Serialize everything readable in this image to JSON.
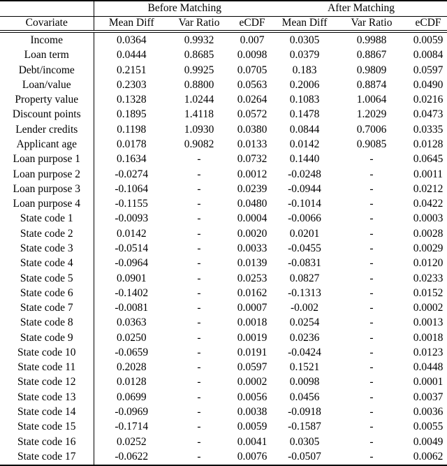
{
  "colors": {
    "text": "#000000",
    "background": "#ffffff",
    "rule": "#000000"
  },
  "table": {
    "group_headers": {
      "corner": "",
      "before": "Before Matching",
      "after": "After Matching"
    },
    "column_headers": [
      "Covariate",
      "Mean Diff",
      "Var Ratio",
      "eCDF",
      "Mean Diff",
      "Var Ratio",
      "eCDF"
    ],
    "rows": [
      {
        "covariate": "Income",
        "values": [
          "0.0364",
          "0.9932",
          "0.007",
          "0.0305",
          "0.9988",
          "0.0059"
        ]
      },
      {
        "covariate": "Loan term",
        "values": [
          "0.0444",
          "0.8685",
          "0.0098",
          "0.0379",
          "0.8867",
          "0.0084"
        ]
      },
      {
        "covariate": "Debt/income",
        "values": [
          "0.2151",
          "0.9925",
          "0.0705",
          "0.183",
          "0.9809",
          "0.0597"
        ]
      },
      {
        "covariate": "Loan/value",
        "values": [
          "0.2303",
          "0.8800",
          "0.0563",
          "0.2006",
          "0.8874",
          "0.0490"
        ]
      },
      {
        "covariate": "Property value",
        "values": [
          "0.1328",
          "1.0244",
          "0.0264",
          "0.1083",
          "1.0064",
          "0.0216"
        ]
      },
      {
        "covariate": "Discount points",
        "values": [
          "0.1895",
          "1.4118",
          "0.0572",
          "0.1478",
          "1.2029",
          "0.0473"
        ]
      },
      {
        "covariate": "Lender credits",
        "values": [
          "0.1198",
          "1.0930",
          "0.0380",
          "0.0844",
          "0.7006",
          "0.0335"
        ]
      },
      {
        "covariate": "Applicant age",
        "values": [
          "0.0178",
          "0.9082",
          "0.0133",
          "0.0142",
          "0.9085",
          "0.0128"
        ]
      },
      {
        "covariate": "Loan purpose 1",
        "values": [
          "0.1634",
          "-",
          "0.0732",
          "0.1440",
          "-",
          "0.0645"
        ]
      },
      {
        "covariate": "Loan purpose 2",
        "values": [
          "-0.0274",
          "-",
          "0.0012",
          "-0.0248",
          "-",
          "0.0011"
        ]
      },
      {
        "covariate": "Loan purpose 3",
        "values": [
          "-0.1064",
          "-",
          "0.0239",
          "-0.0944",
          "-",
          "0.0212"
        ]
      },
      {
        "covariate": "Loan purpose 4",
        "values": [
          "-0.1155",
          "-",
          "0.0480",
          "-0.1014",
          "-",
          "0.0422"
        ]
      },
      {
        "covariate": "State code 1",
        "values": [
          "-0.0093",
          "-",
          "0.0004",
          "-0.0066",
          "-",
          "0.0003"
        ]
      },
      {
        "covariate": "State code 2",
        "values": [
          "0.0142",
          "-",
          "0.0020",
          "0.0201",
          "-",
          "0.0028"
        ]
      },
      {
        "covariate": "State code 3",
        "values": [
          "-0.0514",
          "-",
          "0.0033",
          "-0.0455",
          "-",
          "0.0029"
        ]
      },
      {
        "covariate": "State code 4",
        "values": [
          "-0.0964",
          "-",
          "0.0139",
          "-0.0831",
          "-",
          "0.0120"
        ]
      },
      {
        "covariate": "State code 5",
        "values": [
          "0.0901",
          "-",
          "0.0253",
          "0.0827",
          "-",
          "0.0233"
        ]
      },
      {
        "covariate": "State code 6",
        "values": [
          "-0.1402",
          "-",
          "0.0162",
          "-0.1313",
          "-",
          "0.0152"
        ]
      },
      {
        "covariate": "State code 7",
        "values": [
          "-0.0081",
          "-",
          "0.0007",
          "-0.002",
          "-",
          "0.0002"
        ]
      },
      {
        "covariate": "State code 8",
        "values": [
          "0.0363",
          "-",
          "0.0018",
          "0.0254",
          "-",
          "0.0013"
        ]
      },
      {
        "covariate": "State code 9",
        "values": [
          "0.0250",
          "-",
          "0.0019",
          "0.0236",
          "-",
          "0.0018"
        ]
      },
      {
        "covariate": "State code 10",
        "values": [
          "-0.0659",
          "-",
          "0.0191",
          "-0.0424",
          "-",
          "0.0123"
        ]
      },
      {
        "covariate": "State code 11",
        "values": [
          "0.2028",
          "-",
          "0.0597",
          "0.1521",
          "-",
          "0.0448"
        ]
      },
      {
        "covariate": "State code 12",
        "values": [
          "0.0128",
          "-",
          "0.0002",
          "0.0098",
          "-",
          "0.0001"
        ]
      },
      {
        "covariate": "State code 13",
        "values": [
          "0.0699",
          "-",
          "0.0056",
          "0.0456",
          "-",
          "0.0037"
        ]
      },
      {
        "covariate": "State code 14",
        "values": [
          "-0.0969",
          "-",
          "0.0038",
          "-0.0918",
          "-",
          "0.0036"
        ]
      },
      {
        "covariate": "State code 15",
        "values": [
          "-0.1714",
          "-",
          "0.0059",
          "-0.1587",
          "-",
          "0.0055"
        ]
      },
      {
        "covariate": "State code 16",
        "values": [
          "0.0252",
          "-",
          "0.0041",
          "0.0305",
          "-",
          "0.0049"
        ]
      },
      {
        "covariate": "State code 17",
        "values": [
          "-0.0622",
          "-",
          "0.0076",
          "-0.0507",
          "-",
          "0.0062"
        ]
      }
    ]
  }
}
